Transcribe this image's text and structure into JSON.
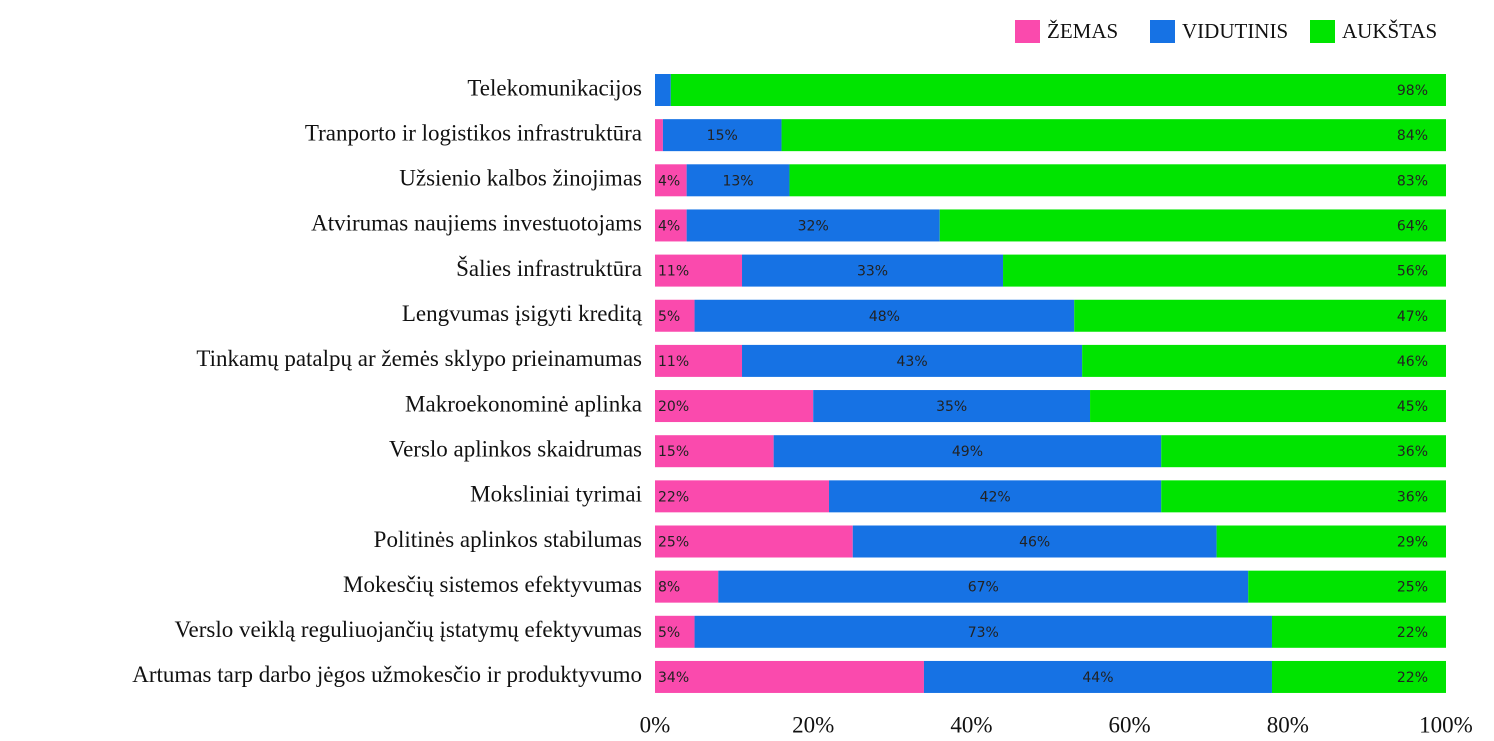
{
  "chart_data": {
    "type": "stacked-barh",
    "categories": [
      "Telekomunikacijos",
      "Tranporto ir logistikos infrastruktūra",
      "Užsienio kalbos žinojimas",
      "Atvirumas naujiems investuotojams",
      "Šalies infrastruktūra",
      "Lengvumas įsigyti kreditą",
      "Tinkamų patalpų ar žemės sklypo prieinamumas",
      "Makroekonominė aplinka",
      "Verslo aplinkos skaidrumas",
      "Moksliniai tyrimai",
      "Politinės aplinkos stabilumas",
      "Mokesčių sistemos efektyvumas",
      "Verslo veiklą reguliuojančių įstatymų efektyvumas",
      "Artumas tarp darbo jėgos užmokesčio ir produktyvumo"
    ],
    "series": [
      {
        "name": "ŽEMAS",
        "color": "#fa4aad",
        "values": [
          0,
          1,
          4,
          4,
          11,
          5,
          11,
          20,
          15,
          22,
          25,
          8,
          5,
          34
        ],
        "value_labels": [
          null,
          null,
          "4%",
          "4%",
          "11%",
          "5%",
          "11%",
          "20%",
          "15%",
          "22%",
          "25%",
          "8%",
          "5%",
          "34%"
        ]
      },
      {
        "name": "VIDUTINIS",
        "color": "#1672e4",
        "values": [
          2,
          15,
          13,
          32,
          33,
          48,
          43,
          35,
          49,
          42,
          46,
          67,
          73,
          44
        ],
        "value_labels": [
          null,
          "15%",
          "13%",
          "32%",
          "33%",
          "48%",
          "43%",
          "35%",
          "49%",
          "42%",
          "46%",
          "67%",
          "73%",
          "44%"
        ]
      },
      {
        "name": "AUKŠTAS",
        "color": "#00e400",
        "values": [
          98,
          84,
          83,
          64,
          56,
          47,
          46,
          45,
          36,
          36,
          29,
          25,
          22,
          22
        ],
        "value_labels": [
          "98%",
          "84%",
          "83%",
          "64%",
          "56%",
          "47%",
          "46%",
          "45%",
          "36%",
          "36%",
          "29%",
          "25%",
          "22%",
          "22%"
        ]
      }
    ],
    "xlim": [
      0,
      100
    ],
    "xticks": [
      {
        "value": 0,
        "label": "0%"
      },
      {
        "value": 20,
        "label": "20%"
      },
      {
        "value": 40,
        "label": "40%"
      },
      {
        "value": 60,
        "label": "60%"
      },
      {
        "value": 80,
        "label": "80%"
      },
      {
        "value": 100,
        "label": "100%"
      }
    ],
    "legend": "top-right",
    "grid": false
  }
}
